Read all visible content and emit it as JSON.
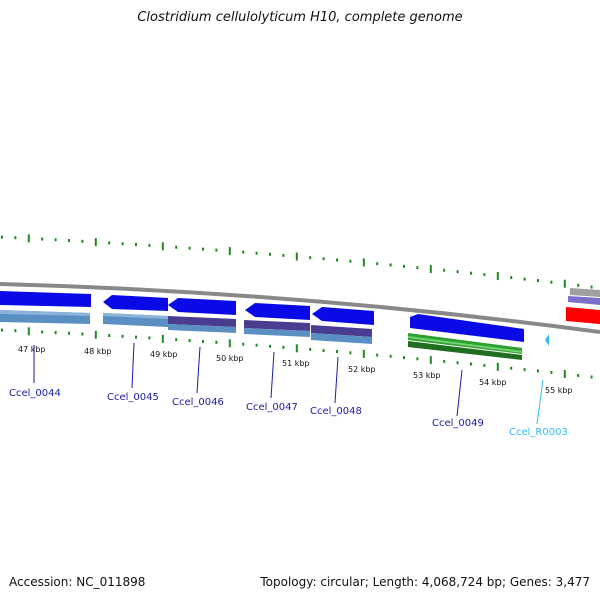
{
  "title": "Clostridium cellulolyticum H10, complete genome",
  "footer": {
    "accession": "Accession: NC_011898",
    "summary": "Topology: circular; Length: 4,068,724 bp; Genes: 3,477"
  },
  "colors": {
    "backbone": "#888888",
    "tick": "#1f8a1f",
    "cds_forward": "#0a0ae6",
    "cds_reverse_track": "#5a8fc4",
    "purple_track": "#4a3d8f",
    "green_track": "#2ea02e",
    "rna": "#33bbee",
    "red_feature": "#ff0000",
    "gene_label": "#1a1aa8",
    "rna_label": "#33bbee"
  },
  "kbp_labels": [
    "47 kbp",
    "48 kbp",
    "49 kbp",
    "50 kbp",
    "51 kbp",
    "52 kbp",
    "53 kbp",
    "54 kbp",
    "55 kbp"
  ],
  "gene_labels": [
    {
      "id": "g44",
      "text": "Ccel_0044",
      "kind": "cds"
    },
    {
      "id": "g45",
      "text": "Ccel_0045",
      "kind": "cds"
    },
    {
      "id": "g46",
      "text": "Ccel_0046",
      "kind": "cds"
    },
    {
      "id": "g47",
      "text": "Ccel_0047",
      "kind": "cds"
    },
    {
      "id": "g48",
      "text": "Ccel_0048",
      "kind": "cds"
    },
    {
      "id": "g49",
      "text": "Ccel_0049",
      "kind": "cds"
    },
    {
      "id": "r3",
      "text": "Ccel_R0003",
      "kind": "rna"
    }
  ]
}
